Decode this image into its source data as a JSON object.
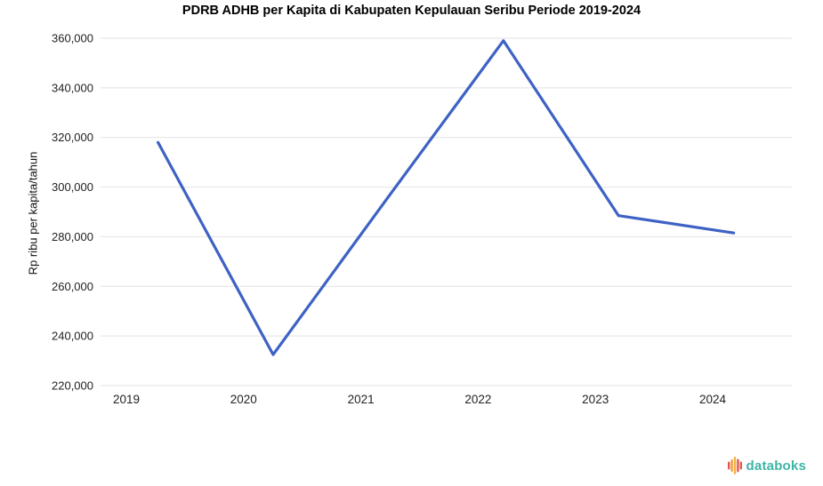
{
  "chart_data": {
    "type": "line",
    "title": "PDRB ADHB per Kapita di Kabupaten Kepulauan Seribu Periode 2019-2024",
    "categories": [
      "2019",
      "2020",
      "2021",
      "2022",
      "2023",
      "2024"
    ],
    "values": [
      318000,
      232500,
      296000,
      359000,
      288500,
      281500
    ],
    "xlabel": "",
    "ylabel": "Rp ribu per kapita/tahun",
    "ylim": [
      220000,
      360000
    ],
    "ytick_step": 20000,
    "ytick_labels": [
      "220,000",
      "240,000",
      "260,000",
      "280,000",
      "300,000",
      "320,000",
      "340,000",
      "360,000"
    ],
    "grid": true,
    "legend": "none",
    "line_color": "#3E62C4",
    "grid_color": "#E2E2E2",
    "tick_label_color": "#222222"
  },
  "branding": {
    "logo_text": "databoks",
    "logo_text_color": "#3DB5A6",
    "logo_icon": "databoks-bars-icon",
    "logo_bar_colors": [
      "#E2574C",
      "#F09C3C",
      "#F4B13E",
      "#E2574C",
      "#E2574C"
    ]
  }
}
